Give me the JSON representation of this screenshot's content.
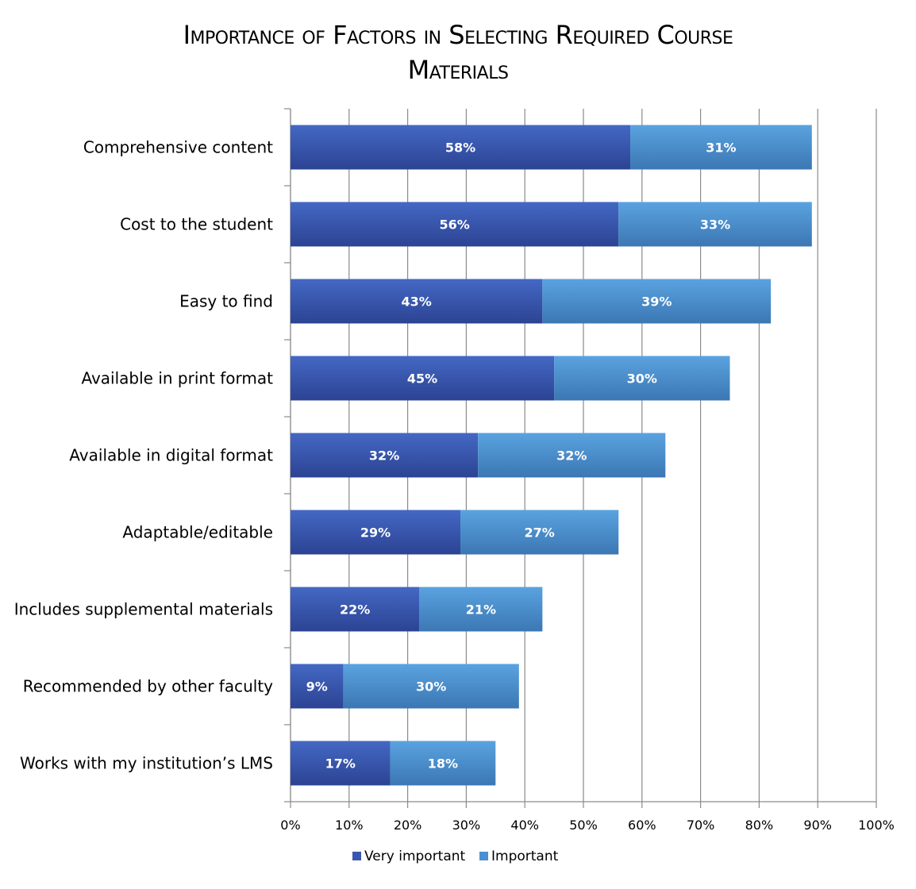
{
  "chart_data": {
    "type": "bar",
    "orientation": "horizontal",
    "stacked": true,
    "title": "Importance of Factors in Selecting Required Course Materials",
    "title_lines": [
      "Importance of Factors in Selecting Required Course",
      "Materials"
    ],
    "categories": [
      "Comprehensive content",
      "Cost to the student",
      "Easy to find",
      "Available in print format",
      "Available in digital format",
      "Adaptable/editable",
      "Includes supplemental materials",
      "Recommended by other faculty",
      "Works with my institution’s LMS"
    ],
    "series": [
      {
        "name": "Very important",
        "color": "#3a56b0",
        "values": [
          58,
          56,
          43,
          45,
          32,
          29,
          22,
          9,
          17
        ],
        "labels": [
          "58%",
          "56%",
          "43%",
          "45%",
          "32%",
          "29%",
          "22%",
          "9%",
          "17%"
        ]
      },
      {
        "name": "Important",
        "color": "#4a8fd4",
        "values": [
          31,
          33,
          39,
          30,
          32,
          27,
          21,
          30,
          18
        ],
        "labels": [
          "31%",
          "33%",
          "39%",
          "30%",
          "32%",
          "27%",
          "21%",
          "30%",
          "18%"
        ]
      }
    ],
    "xlim": [
      0,
      100
    ],
    "x_ticks": [
      "0%",
      "10%",
      "20%",
      "30%",
      "40%",
      "50%",
      "60%",
      "70%",
      "80%",
      "90%",
      "100%"
    ],
    "grid": true,
    "legend_position": "bottom"
  }
}
